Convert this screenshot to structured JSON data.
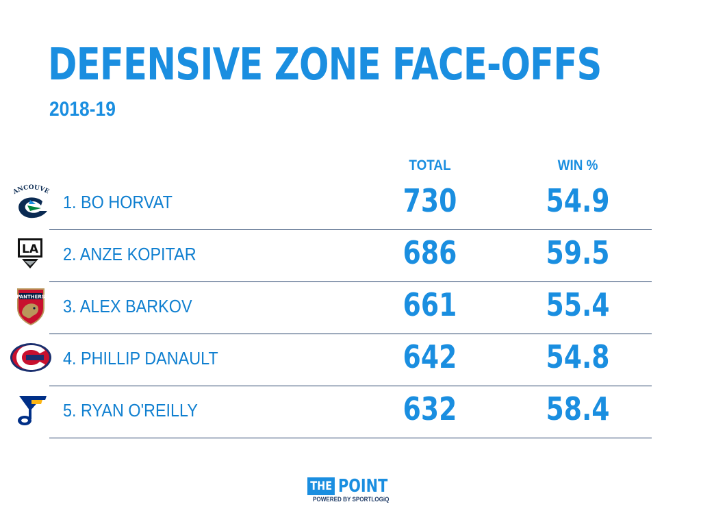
{
  "header": {
    "title": "DEFENSIVE ZONE FACE-OFFS",
    "subtitle": "2018-19"
  },
  "chart_data": {
    "type": "table",
    "columns": [
      "TOTAL",
      "WIN %"
    ],
    "rows": [
      {
        "player": "1. BO HORVAT",
        "team_logo": "canucks-logo",
        "total": "730",
        "win_pct": "54.9"
      },
      {
        "player": "2. ANZE KOPITAR",
        "team_logo": "kings-logo",
        "total": "686",
        "win_pct": "59.5"
      },
      {
        "player": "3. ALEX BARKOV",
        "team_logo": "panthers-logo",
        "total": "661",
        "win_pct": "55.4"
      },
      {
        "player": "4. PHILLIP DANAULT",
        "team_logo": "canadiens-logo",
        "total": "642",
        "win_pct": "54.8"
      },
      {
        "player": "5. RYAN O'REILLY",
        "team_logo": "blues-logo",
        "total": "632",
        "win_pct": "58.4"
      }
    ]
  },
  "logos": {
    "canucks_text": "VANCOUVER",
    "kings_text": "LA",
    "panthers_text": "PANTHERS"
  },
  "footer": {
    "brand_the": "THE",
    "brand_point": "POINT",
    "powered_by": "POWERED BY SPORTLOGiQ"
  },
  "colors": {
    "accent": "#1a8ee0",
    "rule": "#1f3b66"
  }
}
